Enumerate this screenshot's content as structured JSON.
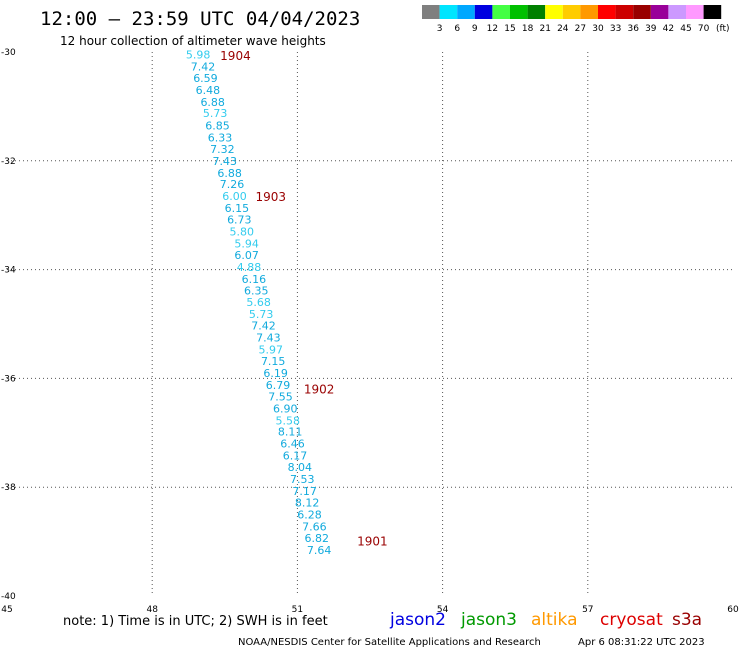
{
  "header": {
    "title": "12:00 – 23:59 UTC 04/04/2023",
    "subtitle": "12 hour collection of altimeter wave heights"
  },
  "color_scale": {
    "unit": "(ft)",
    "labels": [
      "3",
      "6",
      "9",
      "12",
      "15",
      "18",
      "21",
      "24",
      "27",
      "30",
      "33",
      "36",
      "39",
      "42",
      "45",
      "70"
    ],
    "colors": [
      "#7f7f7f",
      "#00e5ff",
      "#00a8ff",
      "#0000e0",
      "#44ff44",
      "#00c000",
      "#008000",
      "#ffff00",
      "#ffcc00",
      "#ff9900",
      "#ff0000",
      "#cc0000",
      "#990000",
      "#990099",
      "#cc99ff",
      "#ff99ff",
      "#000000"
    ]
  },
  "note": "note: 1) Time is in UTC; 2) SWH is in feet",
  "satellites": [
    {
      "name": "jason2",
      "color": "#0000e0"
    },
    {
      "name": "jason3",
      "color": "#009900"
    },
    {
      "name": "altika",
      "color": "#ff9900"
    },
    {
      "name": "cryosat",
      "color": "#dd0000"
    },
    {
      "name": "s3a",
      "color": "#990000"
    }
  ],
  "footer": {
    "credit": "NOAA/NESDIS Center for Satellite Applications and Research",
    "timestamp": "Apr  6 08:31:22 UTC 2023"
  },
  "chart_data": {
    "type": "scatter",
    "xlim": [
      45,
      60
    ],
    "ylim": [
      -40,
      -30
    ],
    "x_ticks": [
      45,
      48,
      51,
      54,
      57,
      60
    ],
    "y_ticks": [
      -30,
      -32,
      -34,
      -36,
      -38,
      -40
    ],
    "grid": true,
    "points": [
      {
        "lon": 48.95,
        "lat": -30.05,
        "value": "5.98",
        "color": "#33ccee"
      },
      {
        "lon": 49.05,
        "lat": -30.27,
        "value": "7.42",
        "color": "#11aadd"
      },
      {
        "lon": 49.1,
        "lat": -30.48,
        "value": "6.59",
        "color": "#11aadd"
      },
      {
        "lon": 49.15,
        "lat": -30.7,
        "value": "6.48",
        "color": "#11aadd"
      },
      {
        "lon": 49.25,
        "lat": -30.92,
        "value": "6.88",
        "color": "#11aadd"
      },
      {
        "lon": 49.3,
        "lat": -31.12,
        "value": "5.73",
        "color": "#33ccee"
      },
      {
        "lon": 49.35,
        "lat": -31.35,
        "value": "6.85",
        "color": "#11aadd"
      },
      {
        "lon": 49.4,
        "lat": -31.57,
        "value": "6.33",
        "color": "#11aadd"
      },
      {
        "lon": 49.45,
        "lat": -31.78,
        "value": "7.32",
        "color": "#11aadd"
      },
      {
        "lon": 49.5,
        "lat": -32.0,
        "value": "7.43",
        "color": "#11aadd"
      },
      {
        "lon": 49.6,
        "lat": -32.22,
        "value": "6.88",
        "color": "#11aadd"
      },
      {
        "lon": 49.65,
        "lat": -32.43,
        "value": "7.26",
        "color": "#11aadd"
      },
      {
        "lon": 49.7,
        "lat": -32.65,
        "value": "6.00",
        "color": "#33ccee"
      },
      {
        "lon": 49.75,
        "lat": -32.87,
        "value": "6.15",
        "color": "#11aadd"
      },
      {
        "lon": 49.8,
        "lat": -33.08,
        "value": "6.73",
        "color": "#11aadd"
      },
      {
        "lon": 49.85,
        "lat": -33.3,
        "value": "5.80",
        "color": "#33ccee"
      },
      {
        "lon": 49.95,
        "lat": -33.52,
        "value": "5.94",
        "color": "#33ccee"
      },
      {
        "lon": 49.95,
        "lat": -33.73,
        "value": "6.07",
        "color": "#11aadd"
      },
      {
        "lon": 50.0,
        "lat": -33.95,
        "value": "4.88",
        "color": "#33ccee"
      },
      {
        "lon": 50.1,
        "lat": -34.17,
        "value": "6.16",
        "color": "#11aadd"
      },
      {
        "lon": 50.15,
        "lat": -34.38,
        "value": "6.35",
        "color": "#11aadd"
      },
      {
        "lon": 50.2,
        "lat": -34.6,
        "value": "5.68",
        "color": "#33ccee"
      },
      {
        "lon": 50.25,
        "lat": -34.82,
        "value": "5.73",
        "color": "#33ccee"
      },
      {
        "lon": 50.3,
        "lat": -35.03,
        "value": "7.42",
        "color": "#11aadd"
      },
      {
        "lon": 50.4,
        "lat": -35.25,
        "value": "7.43",
        "color": "#11aadd"
      },
      {
        "lon": 50.45,
        "lat": -35.47,
        "value": "5.97",
        "color": "#33ccee"
      },
      {
        "lon": 50.5,
        "lat": -35.68,
        "value": "7.15",
        "color": "#11aadd"
      },
      {
        "lon": 50.55,
        "lat": -35.9,
        "value": "6.19",
        "color": "#11aadd"
      },
      {
        "lon": 50.6,
        "lat": -36.12,
        "value": "6.79",
        "color": "#11aadd"
      },
      {
        "lon": 50.65,
        "lat": -36.33,
        "value": "7.55",
        "color": "#11aadd"
      },
      {
        "lon": 50.75,
        "lat": -36.55,
        "value": "6.90",
        "color": "#11aadd"
      },
      {
        "lon": 50.8,
        "lat": -36.77,
        "value": "5.58",
        "color": "#33ccee"
      },
      {
        "lon": 50.85,
        "lat": -36.98,
        "value": "8.11",
        "color": "#11aadd"
      },
      {
        "lon": 50.9,
        "lat": -37.2,
        "value": "6.46",
        "color": "#11aadd"
      },
      {
        "lon": 50.95,
        "lat": -37.42,
        "value": "6.17",
        "color": "#11aadd"
      },
      {
        "lon": 51.05,
        "lat": -37.63,
        "value": "8.04",
        "color": "#11aadd"
      },
      {
        "lon": 51.1,
        "lat": -37.85,
        "value": "7.53",
        "color": "#11aadd"
      },
      {
        "lon": 51.15,
        "lat": -38.07,
        "value": "7.17",
        "color": "#11aadd"
      },
      {
        "lon": 51.2,
        "lat": -38.28,
        "value": "8.12",
        "color": "#11aadd"
      },
      {
        "lon": 51.25,
        "lat": -38.5,
        "value": "6.28",
        "color": "#11aadd"
      },
      {
        "lon": 51.35,
        "lat": -38.72,
        "value": "7.66",
        "color": "#11aadd"
      },
      {
        "lon": 51.4,
        "lat": -38.93,
        "value": "6.82",
        "color": "#11aadd"
      },
      {
        "lon": 51.45,
        "lat": -39.15,
        "value": "7.64",
        "color": "#11aadd"
      }
    ],
    "time_labels": [
      {
        "lon": 49.72,
        "lat": -30.07,
        "text": "1904",
        "color": "#990000"
      },
      {
        "lon": 50.45,
        "lat": -32.67,
        "text": "1903",
        "color": "#990000"
      },
      {
        "lon": 51.45,
        "lat": -36.2,
        "text": "1902",
        "color": "#990000"
      },
      {
        "lon": 52.55,
        "lat": -39.0,
        "text": "1901",
        "color": "#990000"
      }
    ]
  }
}
